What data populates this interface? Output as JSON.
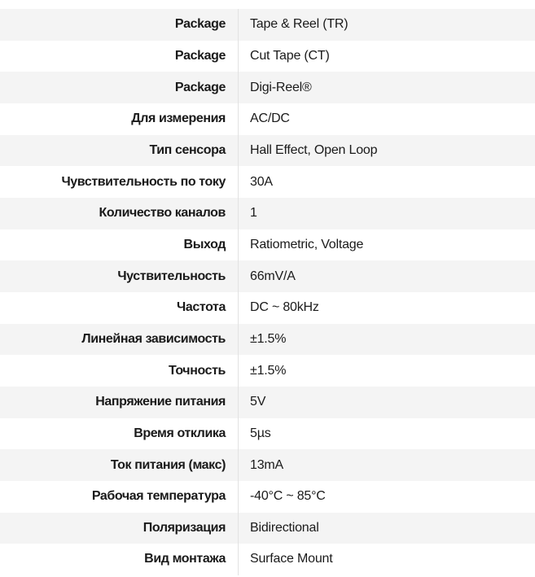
{
  "specs": [
    {
      "label": "Package",
      "value": "Tape & Reel (TR)"
    },
    {
      "label": "Package",
      "value": "Cut Tape (CT)"
    },
    {
      "label": "Package",
      "value": "Digi-Reel®"
    },
    {
      "label": "Для измерения",
      "value": "AC/DC"
    },
    {
      "label": "Тип сенсора",
      "value": "Hall Effect, Open Loop"
    },
    {
      "label": "Чувствительность по току",
      "value": "30A"
    },
    {
      "label": "Количество каналов",
      "value": "1"
    },
    {
      "label": "Выход",
      "value": "Ratiometric, Voltage"
    },
    {
      "label": "Чуствительность",
      "value": "66mV/A"
    },
    {
      "label": "Частота",
      "value": "DC ~ 80kHz"
    },
    {
      "label": "Линейная зависимость",
      "value": "±1.5%"
    },
    {
      "label": "Точность",
      "value": "±1.5%"
    },
    {
      "label": "Напряжение питания",
      "value": "5V"
    },
    {
      "label": "Время отклика",
      "value": "5µs"
    },
    {
      "label": "Ток питания (макс)",
      "value": "13mA"
    },
    {
      "label": "Рабочая температура",
      "value": "-40°C ~ 85°C"
    },
    {
      "label": "Поляризация",
      "value": "Bidirectional"
    },
    {
      "label": "Вид монтажа",
      "value": "Surface Mount"
    }
  ]
}
